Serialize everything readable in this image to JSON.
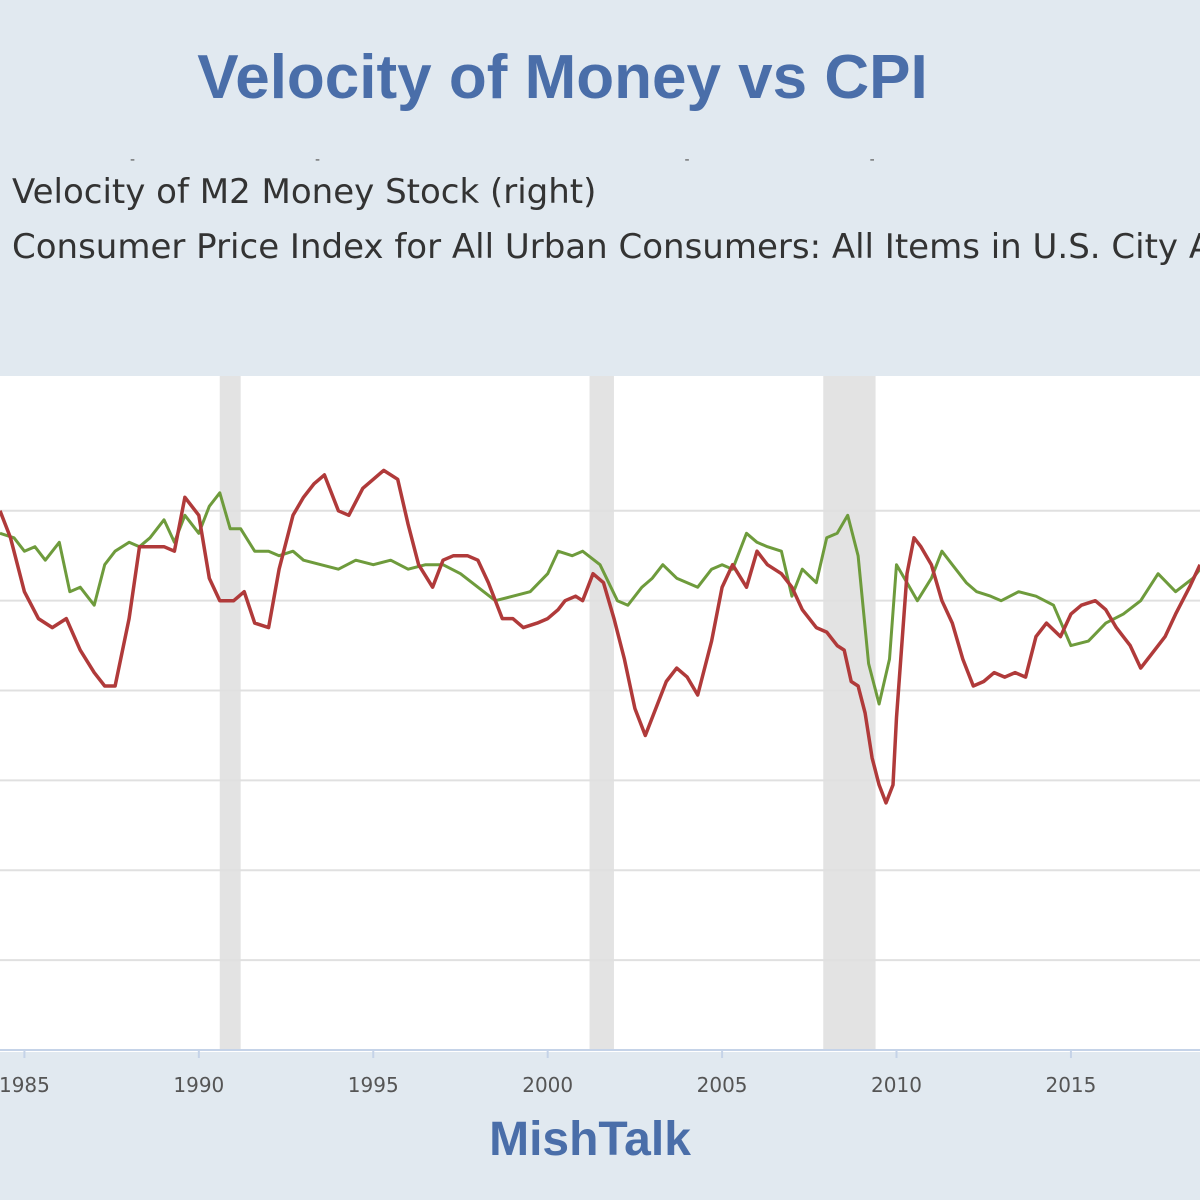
{
  "title": "Velocity of Money vs CPI",
  "footer": "MishTalk",
  "chart_data": {
    "type": "line",
    "title": "Velocity of Money vs CPI",
    "xlabel": "",
    "ylabel": "",
    "xlim": [
      1984.3,
      2018.7
    ],
    "ylim": [
      -0.08,
      0.07
    ],
    "grid": true,
    "x_ticks": [
      1985,
      1990,
      1995,
      2000,
      2005,
      2010,
      2015
    ],
    "x_tick_labels": [
      "1985",
      "1990",
      "1995",
      "2000",
      "2005",
      "2010",
      "2015"
    ],
    "recessions": [
      [
        1990.6,
        1991.2
      ],
      [
        2001.2,
        2001.9
      ],
      [
        2007.9,
        2009.4
      ]
    ],
    "series": [
      {
        "name": "Velocity of M2 Money Stock (right)",
        "color": "#6e9b3c",
        "x": [
          1984.3,
          1984.7,
          1985.0,
          1985.3,
          1985.6,
          1986.0,
          1986.3,
          1986.6,
          1987.0,
          1987.3,
          1987.6,
          1988.0,
          1988.3,
          1988.6,
          1989.0,
          1989.3,
          1989.6,
          1990.0,
          1990.3,
          1990.6,
          1990.9,
          1991.2,
          1991.6,
          1992.0,
          1992.3,
          1992.7,
          1993.0,
          1993.5,
          1994.0,
          1994.5,
          1995.0,
          1995.5,
          1996.0,
          1996.5,
          1997.0,
          1997.5,
          1998.0,
          1998.5,
          1999.0,
          1999.5,
          2000.0,
          2000.3,
          2000.7,
          2001.0,
          2001.5,
          2002.0,
          2002.3,
          2002.7,
          2003.0,
          2003.3,
          2003.7,
          2004.0,
          2004.3,
          2004.7,
          2005.0,
          2005.3,
          2005.7,
          2006.0,
          2006.3,
          2006.7,
          2007.0,
          2007.3,
          2007.7,
          2008.0,
          2008.3,
          2008.6,
          2008.9,
          2009.2,
          2009.5,
          2009.8,
          2010.0,
          2010.3,
          2010.6,
          2011.0,
          2011.3,
          2011.6,
          2012.0,
          2012.3,
          2012.7,
          2013.0,
          2013.5,
          2014.0,
          2014.5,
          2015.0,
          2015.5,
          2016.0,
          2016.5,
          2017.0,
          2017.5,
          2018.0,
          2018.5,
          2018.7
        ],
        "values": [
          0.035,
          0.034,
          0.031,
          0.032,
          0.029,
          0.033,
          0.022,
          0.023,
          0.019,
          0.028,
          0.031,
          0.033,
          0.032,
          0.034,
          0.038,
          0.033,
          0.039,
          0.035,
          0.041,
          0.044,
          0.036,
          0.036,
          0.031,
          0.031,
          0.03,
          0.031,
          0.029,
          0.028,
          0.027,
          0.029,
          0.028,
          0.029,
          0.027,
          0.028,
          0.028,
          0.026,
          0.023,
          0.02,
          0.021,
          0.022,
          0.026,
          0.031,
          0.03,
          0.031,
          0.028,
          0.02,
          0.019,
          0.023,
          0.025,
          0.028,
          0.025,
          0.024,
          0.023,
          0.027,
          0.028,
          0.027,
          0.035,
          0.033,
          0.032,
          0.031,
          0.021,
          0.027,
          0.024,
          0.034,
          0.035,
          0.039,
          0.03,
          0.006,
          -0.003,
          0.007,
          0.028,
          0.024,
          0.02,
          0.025,
          0.031,
          0.028,
          0.024,
          0.022,
          0.021,
          0.02,
          0.022,
          0.021,
          0.019,
          0.01,
          0.011,
          0.015,
          0.017,
          0.02,
          0.026,
          0.022,
          0.025,
          0.027
        ]
      },
      {
        "name": "Consumer Price Index for All Urban Consumers: All Items in U.S. City Average (right)",
        "color": "#b03a3a",
        "x": [
          1984.3,
          1984.6,
          1985.0,
          1985.4,
          1985.8,
          1986.2,
          1986.6,
          1987.0,
          1987.3,
          1987.6,
          1988.0,
          1988.3,
          1988.6,
          1989.0,
          1989.3,
          1989.6,
          1990.0,
          1990.3,
          1990.6,
          1991.0,
          1991.3,
          1991.6,
          1992.0,
          1992.3,
          1992.7,
          1993.0,
          1993.3,
          1993.6,
          1994.0,
          1994.3,
          1994.7,
          1995.0,
          1995.3,
          1995.7,
          1996.0,
          1996.3,
          1996.7,
          1997.0,
          1997.3,
          1997.7,
          1998.0,
          1998.3,
          1998.7,
          1999.0,
          1999.3,
          1999.7,
          2000.0,
          2000.3,
          2000.5,
          2000.8,
          2001.0,
          2001.3,
          2001.6,
          2001.9,
          2002.2,
          2002.5,
          2002.8,
          2003.1,
          2003.4,
          2003.7,
          2004.0,
          2004.3,
          2004.7,
          2005.0,
          2005.3,
          2005.7,
          2006.0,
          2006.3,
          2006.7,
          2007.0,
          2007.3,
          2007.7,
          2008.0,
          2008.3,
          2008.5,
          2008.7,
          2008.9,
          2009.1,
          2009.3,
          2009.5,
          2009.7,
          2009.9,
          2010.0,
          2010.3,
          2010.5,
          2010.7,
          2011.0,
          2011.3,
          2011.6,
          2011.9,
          2012.2,
          2012.5,
          2012.8,
          2013.1,
          2013.4,
          2013.7,
          2014.0,
          2014.3,
          2014.7,
          2015.0,
          2015.3,
          2015.7,
          2016.0,
          2016.3,
          2016.7,
          2017.0,
          2017.3,
          2017.7,
          2018.0,
          2018.4,
          2018.7
        ],
        "values": [
          0.04,
          0.034,
          0.022,
          0.016,
          0.014,
          0.016,
          0.009,
          0.004,
          0.001,
          0.001,
          0.016,
          0.032,
          0.032,
          0.032,
          0.031,
          0.043,
          0.039,
          0.025,
          0.02,
          0.02,
          0.022,
          0.015,
          0.014,
          0.027,
          0.039,
          0.043,
          0.046,
          0.048,
          0.04,
          0.039,
          0.045,
          0.047,
          0.049,
          0.047,
          0.037,
          0.028,
          0.023,
          0.029,
          0.03,
          0.03,
          0.029,
          0.024,
          0.016,
          0.016,
          0.014,
          0.015,
          0.016,
          0.018,
          0.02,
          0.021,
          0.02,
          0.026,
          0.024,
          0.016,
          0.007,
          -0.004,
          -0.01,
          -0.004,
          0.002,
          0.005,
          0.003,
          -0.001,
          0.011,
          0.023,
          0.028,
          0.023,
          0.031,
          0.028,
          0.026,
          0.023,
          0.018,
          0.014,
          0.013,
          0.01,
          0.009,
          0.002,
          0.001,
          -0.005,
          -0.015,
          -0.021,
          -0.025,
          -0.021,
          -0.006,
          0.026,
          0.034,
          0.032,
          0.028,
          0.02,
          0.015,
          0.007,
          0.001,
          0.002,
          0.004,
          0.003,
          0.004,
          0.003,
          0.012,
          0.015,
          0.012,
          0.017,
          0.019,
          0.02,
          0.018,
          0.014,
          0.01,
          0.005,
          0.008,
          0.012,
          0.017,
          0.023,
          0.028
        ]
      }
    ]
  }
}
